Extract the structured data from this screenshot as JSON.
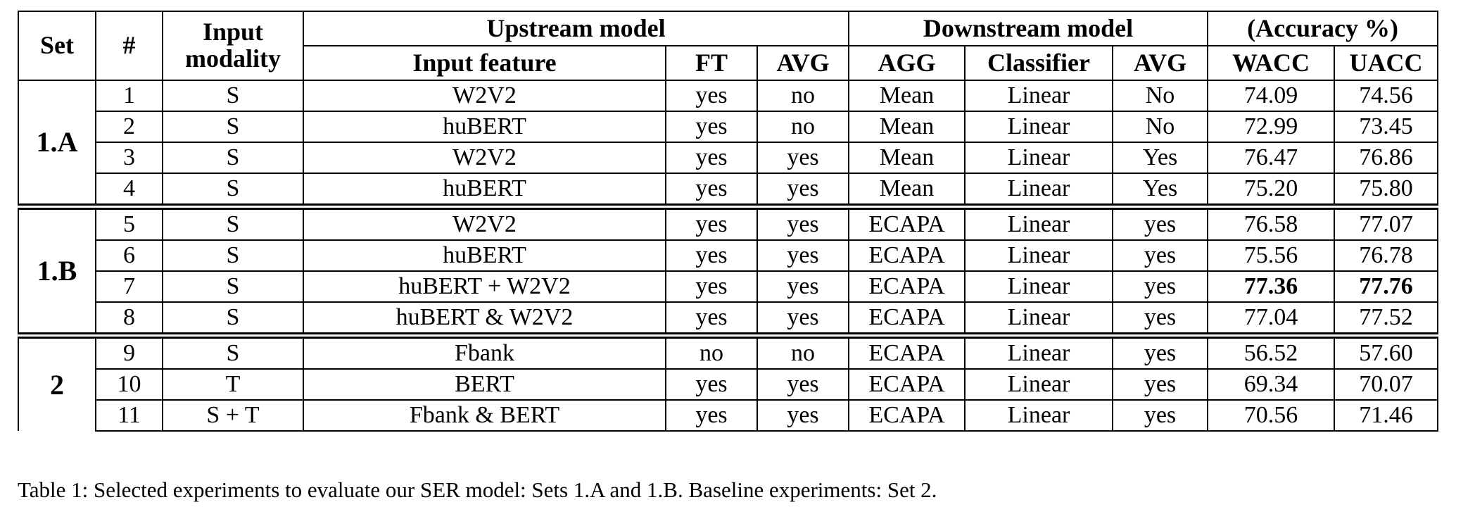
{
  "table": {
    "headers": {
      "set": "Set",
      "num": "#",
      "input_modality": "Input modality",
      "upstream": "Upstream model",
      "downstream": "Downstream model",
      "accuracy": "(Accuracy %)",
      "input_feature": "Input feature",
      "ft": "FT",
      "avg_up": "AVG",
      "agg": "AGG",
      "classifier": "Classifier",
      "avg_down": "AVG",
      "wacc": "WACC",
      "uacc": "UACC"
    },
    "sets": [
      {
        "label": "1.A",
        "rows": [
          {
            "num": "1",
            "modality": "S",
            "feature": "W2V2",
            "ft": "yes",
            "avg_up": "no",
            "agg": "Mean",
            "classifier": "Linear",
            "avg_down": "No",
            "wacc": "74.09",
            "uacc": "74.56",
            "bold": false
          },
          {
            "num": "2",
            "modality": "S",
            "feature": "huBERT",
            "ft": "yes",
            "avg_up": "no",
            "agg": "Mean",
            "classifier": "Linear",
            "avg_down": "No",
            "wacc": "72.99",
            "uacc": "73.45",
            "bold": false
          },
          {
            "num": "3",
            "modality": "S",
            "feature": "W2V2",
            "ft": "yes",
            "avg_up": "yes",
            "agg": "Mean",
            "classifier": "Linear",
            "avg_down": "Yes",
            "wacc": "76.47",
            "uacc": "76.86",
            "bold": false
          },
          {
            "num": "4",
            "modality": "S",
            "feature": "huBERT",
            "ft": "yes",
            "avg_up": "yes",
            "agg": "Mean",
            "classifier": "Linear",
            "avg_down": "Yes",
            "wacc": "75.20",
            "uacc": "75.80",
            "bold": false
          }
        ]
      },
      {
        "label": "1.B",
        "rows": [
          {
            "num": "5",
            "modality": "S",
            "feature": "W2V2",
            "ft": "yes",
            "avg_up": "yes",
            "agg": "ECAPA",
            "classifier": "Linear",
            "avg_down": "yes",
            "wacc": "76.58",
            "uacc": "77.07",
            "bold": false
          },
          {
            "num": "6",
            "modality": "S",
            "feature": "huBERT",
            "ft": "yes",
            "avg_up": "yes",
            "agg": "ECAPA",
            "classifier": "Linear",
            "avg_down": "yes",
            "wacc": "75.56",
            "uacc": "76.78",
            "bold": false
          },
          {
            "num": "7",
            "modality": "S",
            "feature": "huBERT + W2V2",
            "ft": "yes",
            "avg_up": "yes",
            "agg": "ECAPA",
            "classifier": "Linear",
            "avg_down": "yes",
            "wacc": "77.36",
            "uacc": "77.76",
            "bold": true
          },
          {
            "num": "8",
            "modality": "S",
            "feature": "huBERT & W2V2",
            "ft": "yes",
            "avg_up": "yes",
            "agg": "ECAPA",
            "classifier": "Linear",
            "avg_down": "yes",
            "wacc": "77.04",
            "uacc": "77.52",
            "bold": false
          }
        ]
      },
      {
        "label": "2",
        "rows": [
          {
            "num": "9",
            "modality": "S",
            "feature": "Fbank",
            "ft": "no",
            "avg_up": "no",
            "agg": "ECAPA",
            "classifier": "Linear",
            "avg_down": "yes",
            "wacc": "56.52",
            "uacc": "57.60",
            "bold": false
          },
          {
            "num": "10",
            "modality": "T",
            "feature": "BERT",
            "ft": "yes",
            "avg_up": "yes",
            "agg": "ECAPA",
            "classifier": "Linear",
            "avg_down": "yes",
            "wacc": "69.34",
            "uacc": "70.07",
            "bold": false
          },
          {
            "num": "11",
            "modality": "S + T",
            "feature": "Fbank & BERT",
            "ft": "yes",
            "avg_up": "yes",
            "agg": "ECAPA",
            "classifier": "Linear",
            "avg_down": "yes",
            "wacc": "70.56",
            "uacc": "71.46",
            "bold": false
          }
        ]
      }
    ]
  },
  "caption": "Table 1: Selected experiments to evaluate our SER model: Sets 1.A and 1.B. Baseline experiments: Set 2."
}
